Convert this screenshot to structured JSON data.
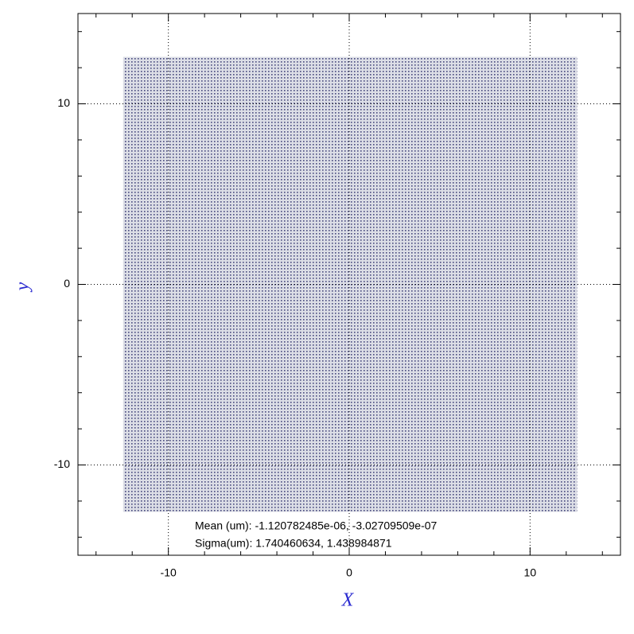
{
  "chart_data": {
    "type": "scatter",
    "x_label": "X",
    "y_label": "y",
    "xlim": [
      -15,
      15
    ],
    "ylim": [
      -15,
      15
    ],
    "xticks": [
      -10,
      0,
      10
    ],
    "yticks": [
      -10,
      0,
      10
    ],
    "xminorticks": [
      -14,
      -12,
      -8,
      -6,
      -4,
      -2,
      2,
      4,
      6,
      8,
      12,
      14
    ],
    "yminorticks": [
      -14,
      -12,
      -8,
      -6,
      -4,
      -2,
      2,
      4,
      6,
      8,
      12,
      14
    ],
    "grid": true,
    "spot_region": {
      "xmin": -12.5,
      "xmax": 12.6,
      "ymin": -12.6,
      "ymax": 12.6
    },
    "color": "#1a1a60",
    "annotations": [
      "Mean (um): -1.120782485e-06, -3.02709509e-07",
      "Sigma(um): 1.740460634, 1.438984871"
    ]
  }
}
